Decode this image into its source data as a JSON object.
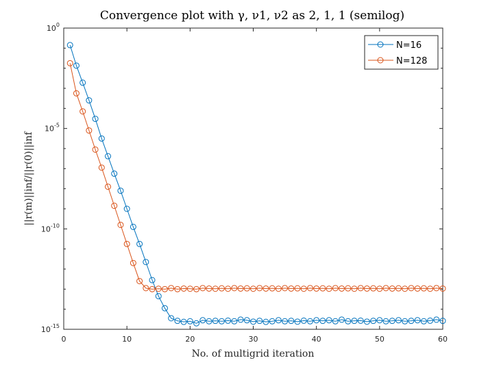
{
  "chart_data": {
    "type": "line",
    "title": "Convergence plot with γ, ν1, ν2 as 2, 1, 1 (semilog)",
    "xlabel": "No. of multigrid iteration",
    "ylabel": "||r(m)||inf/||r(0)||inf",
    "xlim": [
      0,
      60
    ],
    "ylim_log10": [
      -15,
      0
    ],
    "yscale": "log",
    "x_ticks": [
      "0",
      "10",
      "20",
      "30",
      "40",
      "50",
      "60"
    ],
    "y_ticks": [
      {
        "base": "10",
        "exp": "0"
      },
      {
        "base": "10",
        "exp": "-5"
      },
      {
        "base": "10",
        "exp": "-10"
      },
      {
        "base": "10",
        "exp": "-15"
      }
    ],
    "legend_position": "top-right",
    "x": [
      1,
      2,
      3,
      4,
      5,
      6,
      7,
      8,
      9,
      10,
      11,
      12,
      13,
      14,
      15,
      16,
      17,
      18,
      19,
      20,
      21,
      22,
      23,
      24,
      25,
      26,
      27,
      28,
      29,
      30,
      31,
      32,
      33,
      34,
      35,
      36,
      37,
      38,
      39,
      40,
      41,
      42,
      43,
      44,
      45,
      46,
      47,
      48,
      49,
      50,
      51,
      52,
      53,
      54,
      55,
      56,
      57,
      58,
      59,
      60
    ],
    "series": [
      {
        "name": "N=16",
        "color": "#0072BD",
        "log10_values": [
          -0.85,
          -1.87,
          -2.72,
          -3.6,
          -4.52,
          -5.5,
          -6.38,
          -7.25,
          -8.1,
          -9.0,
          -9.9,
          -10.75,
          -11.65,
          -12.55,
          -13.35,
          -13.95,
          -14.45,
          -14.58,
          -14.63,
          -14.6,
          -14.7,
          -14.55,
          -14.6,
          -14.58,
          -14.6,
          -14.57,
          -14.6,
          -14.52,
          -14.55,
          -14.62,
          -14.58,
          -14.63,
          -14.6,
          -14.55,
          -14.6,
          -14.58,
          -14.62,
          -14.57,
          -14.6,
          -14.55,
          -14.58,
          -14.55,
          -14.6,
          -14.52,
          -14.6,
          -14.58,
          -14.57,
          -14.62,
          -14.58,
          -14.55,
          -14.6,
          -14.58,
          -14.55,
          -14.6,
          -14.58,
          -14.55,
          -14.6,
          -14.57,
          -14.52,
          -14.58
        ],
        "label_name": "N=16"
      },
      {
        "name": "N=128",
        "color": "#D95319",
        "log10_values": [
          -1.75,
          -3.25,
          -4.15,
          -5.1,
          -6.05,
          -6.95,
          -7.9,
          -8.85,
          -9.8,
          -10.75,
          -11.7,
          -12.6,
          -12.95,
          -13.0,
          -12.98,
          -13.0,
          -12.95,
          -13.0,
          -12.97,
          -12.98,
          -13.0,
          -12.95,
          -12.97,
          -12.98,
          -12.96,
          -12.98,
          -12.95,
          -12.97,
          -12.96,
          -12.98,
          -12.95,
          -12.97,
          -12.96,
          -12.98,
          -12.95,
          -12.97,
          -12.96,
          -12.98,
          -12.95,
          -12.97,
          -12.96,
          -12.98,
          -12.95,
          -12.97,
          -12.96,
          -12.98,
          -12.95,
          -12.97,
          -12.96,
          -12.98,
          -12.95,
          -12.97,
          -12.96,
          -12.98,
          -12.95,
          -12.97,
          -12.96,
          -12.98,
          -12.95,
          -12.97
        ]
      }
    ]
  }
}
